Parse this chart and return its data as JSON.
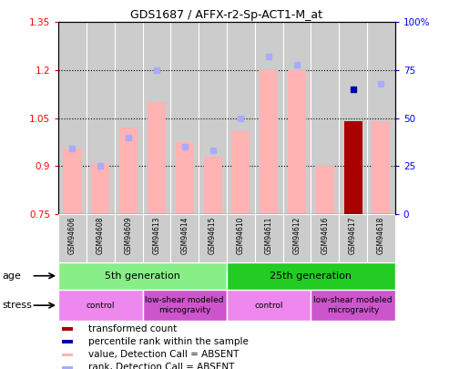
{
  "title": "GDS1687 / AFFX-r2-Sp-ACT1-M_at",
  "samples": [
    "GSM94606",
    "GSM94608",
    "GSM94609",
    "GSM94613",
    "GSM94614",
    "GSM94615",
    "GSM94610",
    "GSM94611",
    "GSM94612",
    "GSM94616",
    "GSM94617",
    "GSM94618"
  ],
  "bar_values": [
    0.955,
    0.91,
    1.02,
    1.1,
    0.975,
    0.93,
    1.01,
    1.2,
    1.2,
    0.9,
    1.04,
    1.04
  ],
  "bar_colors": [
    "#ffb3b3",
    "#ffb3b3",
    "#ffb3b3",
    "#ffb3b3",
    "#ffb3b3",
    "#ffb3b3",
    "#ffb3b3",
    "#ffb3b3",
    "#ffb3b3",
    "#ffb3b3",
    "#aa0000",
    "#ffb3b3"
  ],
  "rank_dot_values_pct": [
    34,
    25,
    40,
    75,
    35,
    33,
    50,
    82,
    78,
    null,
    65,
    68
  ],
  "rank_colors": [
    "#aaaaff",
    "#aaaaff",
    "#aaaaff",
    "#aaaaff",
    "#aaaaff",
    "#aaaaff",
    "#aaaaff",
    "#aaaaff",
    "#aaaaff",
    "#aaaaff",
    "#0000aa",
    "#aaaaff"
  ],
  "ylim_left": [
    0.75,
    1.35
  ],
  "ylim_right": [
    0,
    100
  ],
  "yticks_left": [
    0.75,
    0.9,
    1.05,
    1.2,
    1.35
  ],
  "ytick_labels_left": [
    "0.75",
    "0.9",
    "1.05",
    "1.2",
    "1.35"
  ],
  "yticks_right": [
    0,
    25,
    50,
    75,
    100
  ],
  "ytick_labels_right": [
    "0",
    "25",
    "50",
    "75",
    "100%"
  ],
  "age_groups": [
    {
      "label": "5th generation",
      "start": 0,
      "end": 6,
      "color": "#88ee88"
    },
    {
      "label": "25th generation",
      "start": 6,
      "end": 12,
      "color": "#22cc22"
    }
  ],
  "stress_groups": [
    {
      "label": "control",
      "start": 0,
      "end": 3,
      "color": "#ee88ee"
    },
    {
      "label": "low-shear modeled\nmicrogravity",
      "start": 3,
      "end": 6,
      "color": "#cc55cc"
    },
    {
      "label": "control",
      "start": 6,
      "end": 9,
      "color": "#ee88ee"
    },
    {
      "label": "low-shear modeled\nmicrogravity",
      "start": 9,
      "end": 12,
      "color": "#cc55cc"
    }
  ],
  "legend_items": [
    {
      "color": "#aa0000",
      "label": "transformed count"
    },
    {
      "color": "#0000aa",
      "label": "percentile rank within the sample"
    },
    {
      "color": "#ffb3b3",
      "label": "value, Detection Call = ABSENT"
    },
    {
      "color": "#aaaaff",
      "label": "rank, Detection Call = ABSENT"
    }
  ],
  "age_label": "age",
  "stress_label": "stress",
  "plot_bg": "#cccccc",
  "bar_baseline": 0.75
}
